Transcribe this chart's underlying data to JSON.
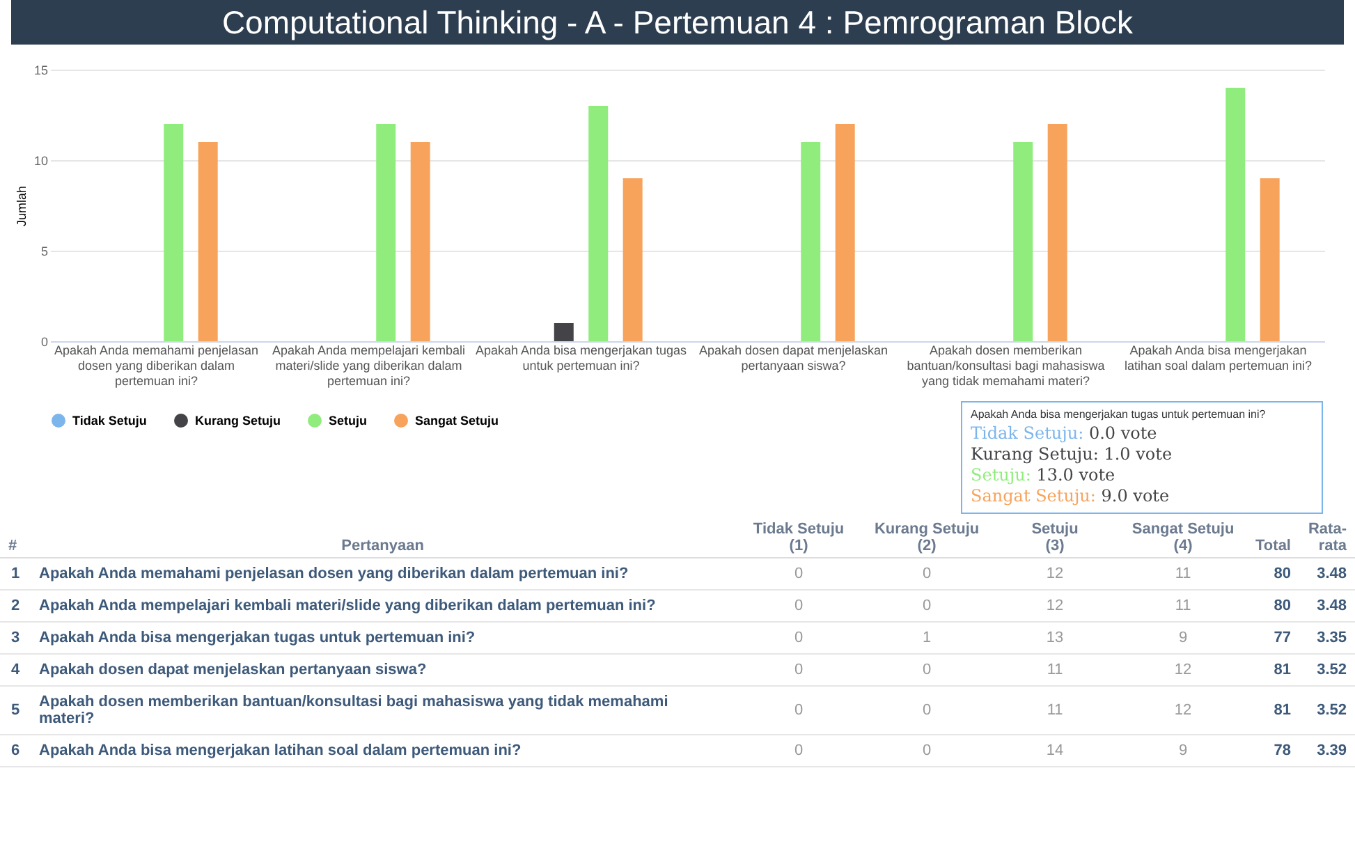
{
  "chart_data": {
    "type": "bar",
    "title": "Computational Thinking - A - Pertemuan 4 : Pemrograman Block",
    "ylabel": "Jumlah",
    "categories": [
      "Apakah Anda memahami penjelasan dosen yang diberikan dalam pertemuan ini?",
      "Apakah Anda mempelajari kembali materi/slide yang diberikan dalam pertemuan ini?",
      "Apakah Anda bisa mengerjakan tugas untuk pertemuan ini?",
      "Apakah dosen dapat menjelaskan pertanyaan siswa?",
      "Apakah dosen memberikan bantuan/konsultasi bagi mahasiswa yang tidak memahami materi?",
      "Apakah Anda bisa mengerjakan latihan soal dalam pertemuan ini?"
    ],
    "series": [
      {
        "name": "Tidak Setuju",
        "color": "#7cb5ec",
        "values": [
          0,
          0,
          0,
          0,
          0,
          0
        ]
      },
      {
        "name": "Kurang Setuju",
        "color": "#434348",
        "values": [
          0,
          0,
          1,
          0,
          0,
          0
        ]
      },
      {
        "name": "Setuju",
        "color": "#90ed7d",
        "values": [
          12,
          12,
          13,
          11,
          11,
          14
        ]
      },
      {
        "name": "Sangat Setuju",
        "color": "#f7a35c",
        "values": [
          11,
          11,
          9,
          12,
          12,
          9
        ]
      }
    ],
    "ylim": [
      0,
      15
    ],
    "yticks": [
      0,
      5,
      10,
      15
    ],
    "grid": "y",
    "legend": "bottom",
    "annotations": [
      "Apakah Anda bisa mengerjakan tugas untuk pertemuan ini?",
      "Tidak Setuju: 0.0 vote",
      "Kurang Setuju: 1.0 vote",
      "Setuju: 13.0 vote",
      "Sangat Setuju: 9.0 vote",
      "#",
      "Pertanyaan",
      "(1)",
      "(2)",
      "(3)",
      "(4)",
      "Total",
      "Rata-rata",
      "1",
      "0",
      "0",
      "12",
      "11",
      "80",
      "3.48",
      "2",
      "0",
      "0",
      "12",
      "11",
      "80",
      "3.48",
      "3",
      "0",
      "1",
      "13",
      "9",
      "77",
      "3.35",
      "4",
      "0",
      "0",
      "11",
      "12",
      "81",
      "3.52",
      "5",
      "0",
      "0",
      "11",
      "12",
      "81",
      "3.52",
      "6",
      "0",
      "0",
      "14",
      "9",
      "78",
      "3.39"
    ]
  }
}
